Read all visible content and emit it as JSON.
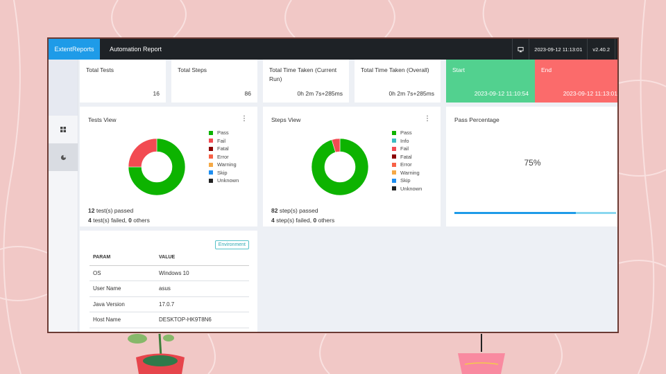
{
  "app": {
    "brand": "ExtentReports",
    "report_name": "Automation Report",
    "timestamp": "2023-09-12 11:13:01",
    "version": "v2.40.2"
  },
  "metrics": {
    "total_tests": {
      "label": "Total Tests",
      "value": "16"
    },
    "total_steps": {
      "label": "Total Steps",
      "value": "86"
    },
    "time_current": {
      "label": "Total Time Taken (Current Run)",
      "value": "0h 2m 7s+285ms"
    },
    "time_overall": {
      "label": "Total Time Taken (Overall)",
      "value": "0h 2m 7s+285ms"
    },
    "start": {
      "label": "Start",
      "value": "2023-09-12 11:10:54"
    },
    "end": {
      "label": "End",
      "value": "2023-09-12 11:13:01"
    }
  },
  "tests_view": {
    "title": "Tests View",
    "legend": [
      {
        "label": "Pass",
        "color": "#0db300"
      },
      {
        "label": "Fail",
        "color": "#f24b52"
      },
      {
        "label": "Fatal",
        "color": "#8b0000"
      },
      {
        "label": "Error",
        "color": "#f76146"
      },
      {
        "label": "Warning",
        "color": "#f5a947"
      },
      {
        "label": "Skip",
        "color": "#1e8ef0"
      },
      {
        "label": "Unknown",
        "color": "#222222"
      }
    ],
    "summary_passed_count": "12",
    "summary_passed_text": " test(s) passed",
    "summary_failed_count": "4",
    "summary_failed_text": " test(s) failed, ",
    "summary_others_count": "0",
    "summary_others_text": " others"
  },
  "steps_view": {
    "title": "Steps View",
    "legend": [
      {
        "label": "Pass",
        "color": "#0db300"
      },
      {
        "label": "Info",
        "color": "#3bbcc2"
      },
      {
        "label": "Fail",
        "color": "#f24b52"
      },
      {
        "label": "Fatal",
        "color": "#8b0000"
      },
      {
        "label": "Error",
        "color": "#f76146"
      },
      {
        "label": "Warning",
        "color": "#f5a947"
      },
      {
        "label": "Skip",
        "color": "#1e8ef0"
      },
      {
        "label": "Unknown",
        "color": "#222222"
      }
    ],
    "summary_passed_count": "82",
    "summary_passed_text": " step(s) passed",
    "summary_failed_count": "4",
    "summary_failed_text": " step(s) failed, ",
    "summary_others_count": "0",
    "summary_others_text": " others"
  },
  "pass_percentage": {
    "title": "Pass Percentage",
    "value_text": "75%",
    "fraction": 0.75
  },
  "environment": {
    "badge": "Environment",
    "headers": [
      "PARAM",
      "VALUE"
    ],
    "rows": [
      [
        "OS",
        "Windows 10"
      ],
      [
        "User Name",
        "asus"
      ],
      [
        "Java Version",
        "17.0.7"
      ],
      [
        "Host Name",
        "DESKTOP-HK9T8N6"
      ]
    ]
  },
  "chart_data": [
    {
      "type": "pie",
      "categories": [
        "Pass",
        "Fail",
        "Fatal",
        "Error",
        "Warning",
        "Skip",
        "Unknown"
      ],
      "values": [
        12,
        4,
        0,
        0,
        0,
        0,
        0
      ],
      "title": "Tests View"
    },
    {
      "type": "pie",
      "categories": [
        "Pass",
        "Info",
        "Fail",
        "Fatal",
        "Error",
        "Warning",
        "Skip",
        "Unknown"
      ],
      "values": [
        82,
        0,
        4,
        0,
        0,
        0,
        0,
        0
      ],
      "title": "Steps View"
    }
  ]
}
